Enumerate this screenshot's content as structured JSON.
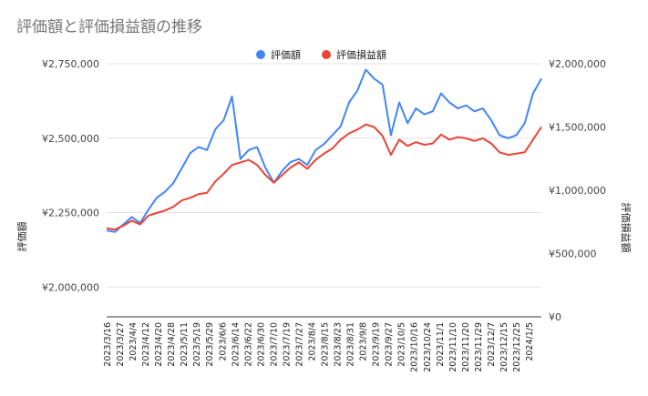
{
  "chart_data": {
    "type": "line",
    "title": "評価額と評価損益額の推移",
    "legend_position": "top",
    "grid": true,
    "y_left": {
      "label": "評価額",
      "range": [
        1900000,
        2750000
      ],
      "ticks": [
        "¥2,000,000",
        "¥2,250,000",
        "¥2,500,000",
        "¥2,750,000"
      ],
      "tick_values": [
        2000000,
        2250000,
        2500000,
        2750000
      ]
    },
    "y_right": {
      "label": "評価損益額",
      "range": [
        0,
        2000000
      ],
      "ticks": [
        "¥0",
        "¥500,000",
        "¥1,000,000",
        "¥1,500,000",
        "¥2,000,000"
      ],
      "tick_values": [
        0,
        500000,
        1000000,
        1500000,
        2000000
      ]
    },
    "x_tick_labels": [
      "2023/3/16",
      "2023/3/27",
      "2023/4/4",
      "2023/4/12",
      "2023/4/20",
      "2023/4/28",
      "2023/5/11",
      "2023/5/19",
      "2023/5/29",
      "2023/6/6",
      "2023/6/14",
      "2023/6/22",
      "2023/6/30",
      "2023/7/10",
      "2023/7/19",
      "2023/7/27",
      "2023/8/4",
      "2023/8/15",
      "2023/8/23",
      "2023/8/31",
      "2023/9/8",
      "2023/9/19",
      "2023/9/27",
      "2023/10/5",
      "2023/10/16",
      "2023/10/24",
      "2023/11/1",
      "2023/11/10",
      "2023/11/20",
      "2023/11/29",
      "2023/12/7",
      "2023/12/15",
      "2023/12/25",
      "2024/1/5"
    ],
    "series": [
      {
        "name": "評価額",
        "color": "#4285f4",
        "axis": "left",
        "values": [
          2190000,
          2185000,
          2210000,
          2235000,
          2215000,
          2260000,
          2300000,
          2320000,
          2350000,
          2400000,
          2450000,
          2470000,
          2460000,
          2530000,
          2560000,
          2640000,
          2430000,
          2460000,
          2470000,
          2400000,
          2350000,
          2390000,
          2420000,
          2430000,
          2410000,
          2460000,
          2480000,
          2510000,
          2540000,
          2620000,
          2660000,
          2730000,
          2700000,
          2680000,
          2510000,
          2620000,
          2550000,
          2600000,
          2580000,
          2590000,
          2650000,
          2620000,
          2600000,
          2610000,
          2590000,
          2600000,
          2560000,
          2510000,
          2500000,
          2510000,
          2550000,
          2650000,
          2700000
        ]
      },
      {
        "name": "評価損益額",
        "color": "#ea4335",
        "axis": "right",
        "values": [
          700000,
          690000,
          720000,
          760000,
          730000,
          800000,
          820000,
          840000,
          870000,
          920000,
          940000,
          970000,
          980000,
          1070000,
          1130000,
          1200000,
          1220000,
          1240000,
          1200000,
          1120000,
          1060000,
          1120000,
          1180000,
          1220000,
          1170000,
          1240000,
          1290000,
          1330000,
          1400000,
          1450000,
          1480000,
          1520000,
          1500000,
          1430000,
          1280000,
          1400000,
          1350000,
          1380000,
          1360000,
          1370000,
          1440000,
          1400000,
          1420000,
          1410000,
          1390000,
          1410000,
          1370000,
          1300000,
          1280000,
          1290000,
          1300000,
          1400000,
          1500000
        ]
      }
    ]
  }
}
